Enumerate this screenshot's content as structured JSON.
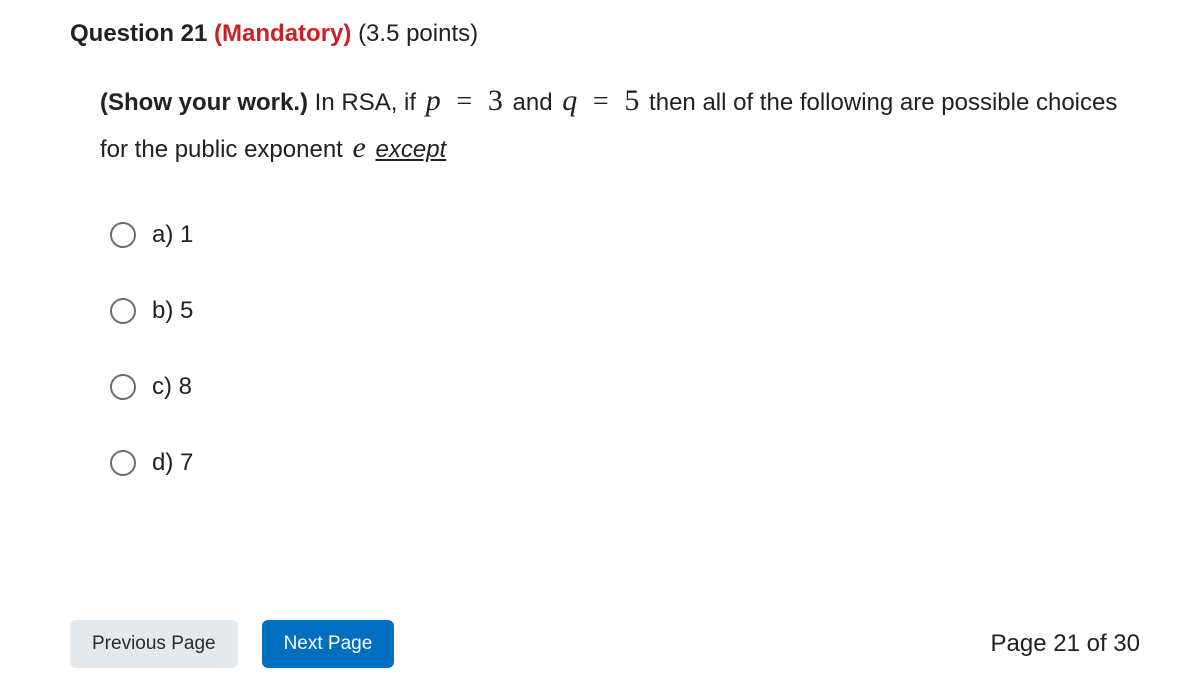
{
  "header": {
    "question_label": "Question 21",
    "mandatory_label": "(Mandatory)",
    "points_label": "(3.5 points)"
  },
  "prompt": {
    "lead_bold": "(Show your work.)",
    "seg1": " In RSA, if ",
    "var_p": "p",
    "eq1": "=",
    "num_p": "3",
    "seg_and": " and ",
    "var_q": "q",
    "eq2": "=",
    "num_q": "5",
    "seg2": " then all of the following are possible choices for the public exponent ",
    "var_e": "e",
    "space": " ",
    "except": "except"
  },
  "options": [
    {
      "label": "a)  1"
    },
    {
      "label": "b)  5"
    },
    {
      "label": "c)  8"
    },
    {
      "label": "d)  7"
    }
  ],
  "footer": {
    "prev_label": "Previous Page",
    "next_label": "Next Page",
    "page_indicator": "Page 21 of 30"
  },
  "colors": {
    "mandatory": "#cd2026",
    "next_bg": "#006fbf",
    "prev_bg": "#e3e9ed",
    "text": "#212121"
  }
}
